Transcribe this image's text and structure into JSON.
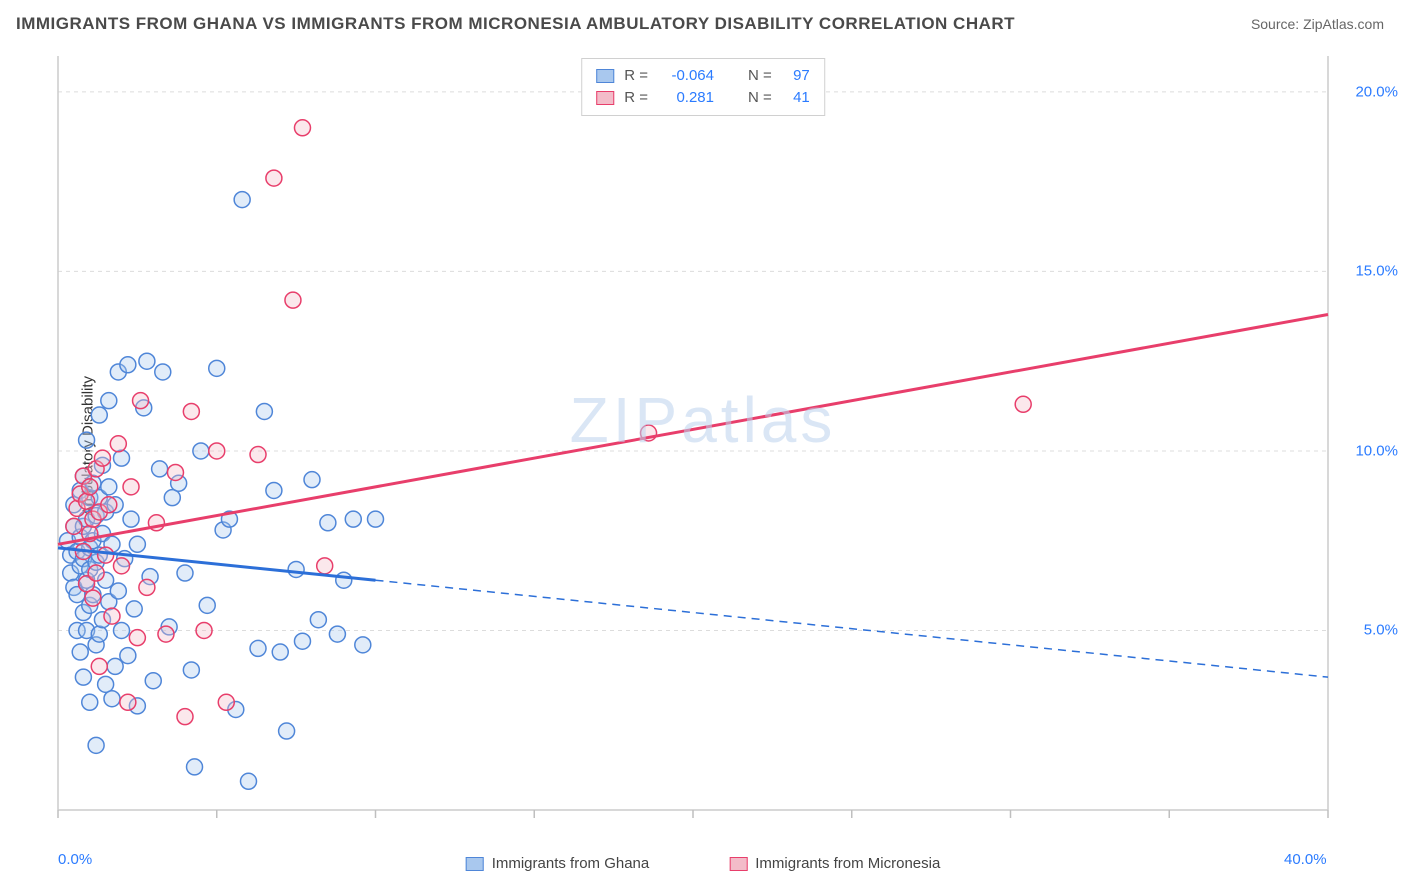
{
  "title": "IMMIGRANTS FROM GHANA VS IMMIGRANTS FROM MICRONESIA AMBULATORY DISABILITY CORRELATION CHART",
  "source_label": "Source: ",
  "source_value": "ZipAtlas.com",
  "ylabel": "Ambulatory Disability",
  "watermark": "ZIPatlas",
  "chart": {
    "type": "scatter",
    "background_color": "#ffffff",
    "grid_color": "#dcdcdc",
    "axis_color": "#cccccc",
    "tick_color": "#bfbfbf",
    "xlim": [
      0,
      40
    ],
    "ylim": [
      0,
      21
    ],
    "x_ticks": [
      0,
      5,
      10,
      15,
      20,
      25,
      30,
      35,
      40
    ],
    "x_tick_labels_shown": {
      "0": "0.0%",
      "40": "40.0%"
    },
    "y_gridlines": [
      5,
      10,
      15,
      20
    ],
    "y_tick_labels": {
      "5": "5.0%",
      "10": "10.0%",
      "15": "15.0%",
      "20": "20.0%"
    },
    "marker_radius": 8,
    "marker_stroke_width": 1.5,
    "marker_fill_opacity": 0.35
  },
  "series": [
    {
      "key": "ghana",
      "label": "Immigrants from Ghana",
      "color_fill": "#a9c8ee",
      "color_stroke": "#4f86d8",
      "R_label": "R =",
      "R": "-0.064",
      "N_label": "N =",
      "N": "97",
      "trend": {
        "color": "#2c6fd8",
        "width": 3,
        "solid_segment": {
          "x1": 0,
          "y1": 7.3,
          "x2": 10,
          "y2": 6.4
        },
        "dashed_segment": {
          "x1": 10,
          "y1": 6.4,
          "x2": 40,
          "y2": 3.7
        },
        "dash_pattern": "8 6"
      },
      "points": [
        [
          0.3,
          7.5
        ],
        [
          0.4,
          7.1
        ],
        [
          0.4,
          6.6
        ],
        [
          0.5,
          7.9
        ],
        [
          0.5,
          6.2
        ],
        [
          0.5,
          8.5
        ],
        [
          0.6,
          7.2
        ],
        [
          0.6,
          6.0
        ],
        [
          0.6,
          5.0
        ],
        [
          0.7,
          8.9
        ],
        [
          0.7,
          7.6
        ],
        [
          0.7,
          6.8
        ],
        [
          0.7,
          4.4
        ],
        [
          0.8,
          9.3
        ],
        [
          0.8,
          7.9
        ],
        [
          0.8,
          7.0
        ],
        [
          0.8,
          5.5
        ],
        [
          0.8,
          3.7
        ],
        [
          0.9,
          10.3
        ],
        [
          0.9,
          8.1
        ],
        [
          0.9,
          6.4
        ],
        [
          0.9,
          5.0
        ],
        [
          1.0,
          8.7
        ],
        [
          1.0,
          7.3
        ],
        [
          1.0,
          6.7
        ],
        [
          1.0,
          5.7
        ],
        [
          1.0,
          3.0
        ],
        [
          1.1,
          9.1
        ],
        [
          1.1,
          7.5
        ],
        [
          1.1,
          6.0
        ],
        [
          1.2,
          8.2
        ],
        [
          1.2,
          6.9
        ],
        [
          1.2,
          4.6
        ],
        [
          1.2,
          1.8
        ],
        [
          1.3,
          11.0
        ],
        [
          1.3,
          8.7
        ],
        [
          1.3,
          7.1
        ],
        [
          1.3,
          4.9
        ],
        [
          1.4,
          9.6
        ],
        [
          1.4,
          7.7
        ],
        [
          1.4,
          5.3
        ],
        [
          1.5,
          8.3
        ],
        [
          1.5,
          6.4
        ],
        [
          1.5,
          3.5
        ],
        [
          1.6,
          11.4
        ],
        [
          1.6,
          9.0
        ],
        [
          1.6,
          5.8
        ],
        [
          1.7,
          7.4
        ],
        [
          1.7,
          3.1
        ],
        [
          1.8,
          8.5
        ],
        [
          1.8,
          4.0
        ],
        [
          1.9,
          12.2
        ],
        [
          1.9,
          6.1
        ],
        [
          2.0,
          9.8
        ],
        [
          2.0,
          5.0
        ],
        [
          2.1,
          7.0
        ],
        [
          2.2,
          12.4
        ],
        [
          2.2,
          4.3
        ],
        [
          2.3,
          8.1
        ],
        [
          2.4,
          5.6
        ],
        [
          2.5,
          7.4
        ],
        [
          2.5,
          2.9
        ],
        [
          2.7,
          11.2
        ],
        [
          2.8,
          12.5
        ],
        [
          2.9,
          6.5
        ],
        [
          3.0,
          3.6
        ],
        [
          3.2,
          9.5
        ],
        [
          3.3,
          12.2
        ],
        [
          3.5,
          5.1
        ],
        [
          3.6,
          8.7
        ],
        [
          3.8,
          9.1
        ],
        [
          4.0,
          6.6
        ],
        [
          4.2,
          3.9
        ],
        [
          4.3,
          1.2
        ],
        [
          4.5,
          10.0
        ],
        [
          4.7,
          5.7
        ],
        [
          5.0,
          12.3
        ],
        [
          5.2,
          7.8
        ],
        [
          5.4,
          8.1
        ],
        [
          5.6,
          2.8
        ],
        [
          5.8,
          17.0
        ],
        [
          6.0,
          0.8
        ],
        [
          6.3,
          4.5
        ],
        [
          6.5,
          11.1
        ],
        [
          6.8,
          8.9
        ],
        [
          7.0,
          4.4
        ],
        [
          7.2,
          2.2
        ],
        [
          7.5,
          6.7
        ],
        [
          7.7,
          4.7
        ],
        [
          8.0,
          9.2
        ],
        [
          8.2,
          5.3
        ],
        [
          8.5,
          8.0
        ],
        [
          8.8,
          4.9
        ],
        [
          9.0,
          6.4
        ],
        [
          9.3,
          8.1
        ],
        [
          9.6,
          4.6
        ],
        [
          10.0,
          8.1
        ]
      ]
    },
    {
      "key": "micronesia",
      "label": "Immigrants from Micronesia",
      "color_fill": "#f3bcc9",
      "color_stroke": "#e83e6b",
      "R_label": "R =",
      "R": "0.281",
      "N_label": "N =",
      "N": "41",
      "trend": {
        "color": "#e83e6b",
        "width": 3,
        "solid_segment": {
          "x1": 0,
          "y1": 7.4,
          "x2": 40,
          "y2": 13.8
        },
        "dashed_segment": null,
        "dash_pattern": null
      },
      "points": [
        [
          0.5,
          7.9
        ],
        [
          0.6,
          8.4
        ],
        [
          0.7,
          8.8
        ],
        [
          0.8,
          9.3
        ],
        [
          0.8,
          7.2
        ],
        [
          0.9,
          8.6
        ],
        [
          0.9,
          6.3
        ],
        [
          1.0,
          9.0
        ],
        [
          1.0,
          7.7
        ],
        [
          1.1,
          8.1
        ],
        [
          1.1,
          5.9
        ],
        [
          1.2,
          9.5
        ],
        [
          1.2,
          6.6
        ],
        [
          1.3,
          8.3
        ],
        [
          1.3,
          4.0
        ],
        [
          1.4,
          9.8
        ],
        [
          1.5,
          7.1
        ],
        [
          1.6,
          8.5
        ],
        [
          1.7,
          5.4
        ],
        [
          1.9,
          10.2
        ],
        [
          2.0,
          6.8
        ],
        [
          2.2,
          3.0
        ],
        [
          2.3,
          9.0
        ],
        [
          2.5,
          4.8
        ],
        [
          2.6,
          11.4
        ],
        [
          2.8,
          6.2
        ],
        [
          3.1,
          8.0
        ],
        [
          3.4,
          4.9
        ],
        [
          3.7,
          9.4
        ],
        [
          4.0,
          2.6
        ],
        [
          4.2,
          11.1
        ],
        [
          4.6,
          5.0
        ],
        [
          5.0,
          10.0
        ],
        [
          5.3,
          3.0
        ],
        [
          6.3,
          9.9
        ],
        [
          6.8,
          17.6
        ],
        [
          7.4,
          14.2
        ],
        [
          7.7,
          19.0
        ],
        [
          8.4,
          6.8
        ],
        [
          18.6,
          10.5
        ],
        [
          30.4,
          11.3
        ]
      ]
    }
  ],
  "legend_top": {
    "R_prefix": "R =",
    "N_prefix": "N ="
  },
  "legend_bottom": {}
}
